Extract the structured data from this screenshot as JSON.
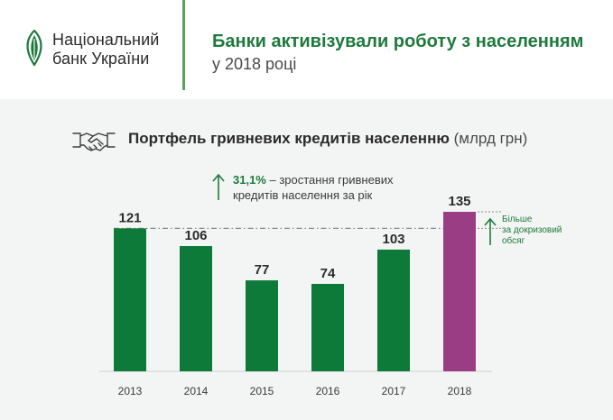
{
  "header": {
    "logo_line1": "Національний",
    "logo_line2": "банк України",
    "title": "Банки активізували роботу з населенням",
    "subtitle": "у 2018 році"
  },
  "chart_title": {
    "main": "Портфель гривневих кредитів населенню",
    "unit": "(млрд грн)"
  },
  "annotation": {
    "percent": "31,1%",
    "text1": " – зростання гривневих",
    "text2": "кредитів населення за рік"
  },
  "note": {
    "line1": "Більше",
    "line2": "за докризовий",
    "line3": "обсяг"
  },
  "colors": {
    "bar_green": "#0e7a3a",
    "bar_highlight": "#9b3d84",
    "accent_green": "#1e7a3c"
  },
  "icons": [
    "logo-leaf-icon",
    "handshake-icon",
    "arrow-up-icon"
  ],
  "chart_data": {
    "type": "bar",
    "categories": [
      "2013",
      "2014",
      "2015",
      "2016",
      "2017",
      "2018"
    ],
    "values": [
      121,
      106,
      77,
      74,
      103,
      135
    ],
    "highlight_index": 5,
    "reference_line_value": 121,
    "title": "Портфель гривневих кредитів населенню",
    "ylabel": "",
    "xlabel": "",
    "ylim": [
      0,
      135
    ],
    "grid": false,
    "legend": "none"
  }
}
